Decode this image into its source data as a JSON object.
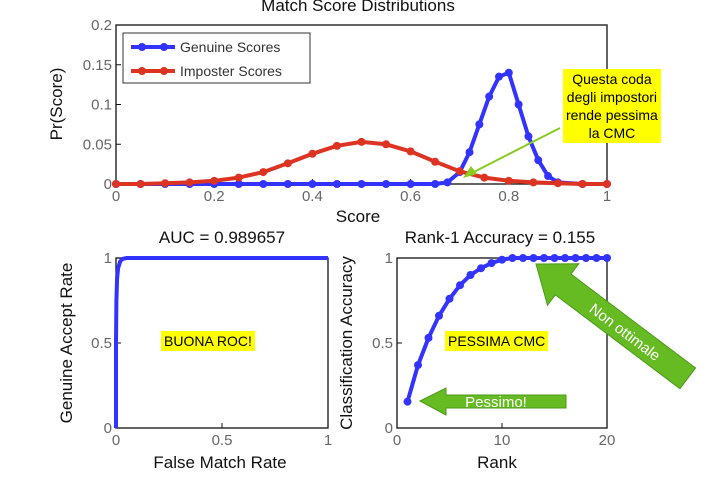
{
  "chart_data": [
    {
      "type": "line",
      "title": "Match Score Distributions",
      "xlabel": "Score",
      "ylabel": "Pr(Score)",
      "xlim": [
        0,
        1
      ],
      "ylim": [
        0,
        0.2
      ],
      "xticks": [
        "0",
        "0.2",
        "0.4",
        "0.6",
        "0.8",
        "1"
      ],
      "yticks": [
        "0",
        "0.05",
        "0.1",
        "0.15",
        "0.2"
      ],
      "legend": "top-left",
      "series": [
        {
          "name": "Genuine Scores",
          "color": "#3333ff",
          "x": [
            0,
            0.05,
            0.1,
            0.15,
            0.2,
            0.25,
            0.3,
            0.35,
            0.4,
            0.45,
            0.5,
            0.55,
            0.6,
            0.65,
            0.675,
            0.7,
            0.72,
            0.74,
            0.76,
            0.78,
            0.8,
            0.82,
            0.84,
            0.86,
            0.88,
            0.9,
            0.95,
            1
          ],
          "y": [
            0,
            0,
            0,
            0,
            0,
            0,
            0,
            0,
            0,
            0,
            0,
            0,
            0,
            0,
            0.002,
            0.015,
            0.04,
            0.075,
            0.11,
            0.135,
            0.14,
            0.1,
            0.06,
            0.03,
            0.01,
            0.002,
            0,
            0
          ]
        },
        {
          "name": "Imposter Scores",
          "color": "#dd3322",
          "x": [
            0,
            0.05,
            0.1,
            0.15,
            0.2,
            0.25,
            0.3,
            0.35,
            0.4,
            0.45,
            0.5,
            0.55,
            0.6,
            0.65,
            0.7,
            0.75,
            0.8,
            0.85,
            0.9,
            0.95,
            1
          ],
          "y": [
            0,
            0,
            0.001,
            0.002,
            0.004,
            0.008,
            0.015,
            0.026,
            0.038,
            0.048,
            0.053,
            0.05,
            0.041,
            0.028,
            0.016,
            0.008,
            0.004,
            0.002,
            0.001,
            0,
            0
          ]
        }
      ],
      "annotation": {
        "text_lines": [
          "Questa coda",
          "degli impostori",
          "rende pessima",
          "la CMC"
        ],
        "background": "#ffff00",
        "arrow_color": "#88cc22"
      }
    },
    {
      "type": "line",
      "title": "AUC = 0.989657",
      "xlabel": "False Match Rate",
      "ylabel": "Genuine Accept Rate",
      "xlim": [
        0,
        1
      ],
      "ylim": [
        0,
        1
      ],
      "xticks": [
        "0",
        "0.5",
        "1"
      ],
      "yticks": [
        "0",
        "0.5",
        "1"
      ],
      "series": [
        {
          "color": "#3333ff",
          "x": [
            0,
            0,
            0.002,
            0.005,
            0.01,
            0.02,
            0.03,
            0.05,
            0.1,
            0.2,
            0.5,
            1
          ],
          "y": [
            0,
            0.5,
            0.75,
            0.88,
            0.94,
            0.98,
            0.995,
            1,
            1,
            1,
            1,
            1
          ]
        }
      ],
      "annotation": {
        "text": "BUONA ROC!",
        "background": "#ffff00"
      }
    },
    {
      "type": "line",
      "title": "Rank-1 Accuracy = 0.155",
      "xlabel": "Rank",
      "ylabel": "Classification Accuracy",
      "xlim": [
        0,
        20
      ],
      "ylim": [
        0,
        1
      ],
      "xticks": [
        "0",
        "10",
        "20"
      ],
      "yticks": [
        "0",
        "0.5",
        "1"
      ],
      "series": [
        {
          "color": "#3333ff",
          "x": [
            1,
            2,
            3,
            4,
            5,
            6,
            7,
            8,
            9,
            10,
            11,
            12,
            13,
            14,
            15,
            16,
            17,
            18,
            19,
            20
          ],
          "y": [
            0.155,
            0.37,
            0.53,
            0.66,
            0.76,
            0.84,
            0.9,
            0.94,
            0.97,
            0.99,
            1,
            1,
            1,
            1,
            1,
            1,
            1,
            1,
            1,
            1
          ]
        }
      ],
      "annotations": [
        {
          "text": "PESSIMA CMC",
          "background": "#ffff00"
        },
        {
          "text": "Pessimo!",
          "arrow_color": "#66bb22"
        },
        {
          "text": "Non ottimale",
          "arrow_color": "#66bb22"
        }
      ]
    }
  ]
}
